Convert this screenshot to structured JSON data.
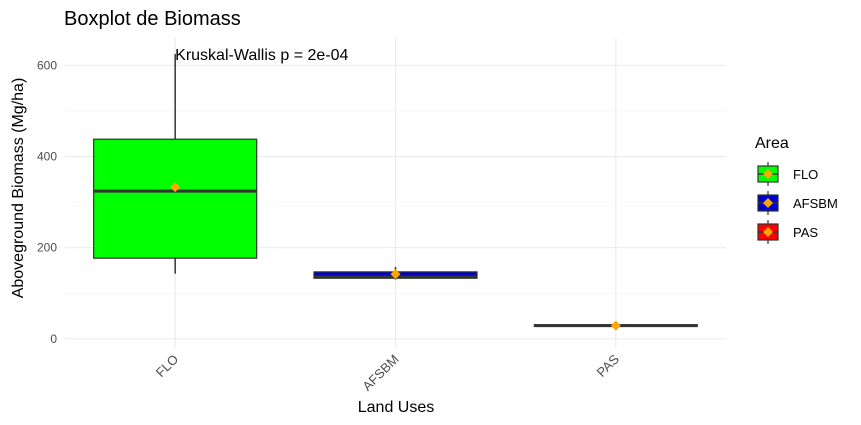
{
  "chart_data": {
    "type": "boxplot",
    "title": "Boxplot de Biomass",
    "xlabel": "Land Uses",
    "ylabel": "Aboveground Biomass (Mg/ha)",
    "annotation": "Kruskal-Wallis p = 2e-04",
    "ylim": [
      -20,
      660
    ],
    "yticks": [
      0,
      200,
      400,
      600
    ],
    "ytick_labels": [
      "0",
      "200",
      "400",
      "600"
    ],
    "categories": [
      "FLO",
      "AFSBM",
      "PAS"
    ],
    "boxes": [
      {
        "category": "FLO",
        "min": 143,
        "q1": 177,
        "median": 324,
        "q3": 438,
        "max": 625,
        "mean": 333,
        "fill": "#00ff00"
      },
      {
        "category": "AFSBM",
        "min": 130,
        "q1": 133,
        "median": 136,
        "q3": 147,
        "max": 158,
        "mean": 142,
        "fill": "#0000cd"
      },
      {
        "category": "PAS",
        "min": 27,
        "q1": 28,
        "median": 29,
        "q3": 31,
        "max": 32,
        "mean": 29,
        "fill": "#ff0000"
      }
    ],
    "mean_marker_color": "#ffa500",
    "box_outline_color": "#333333",
    "grid": true,
    "legend": {
      "title": "Area",
      "placement": "right",
      "entries": [
        "FLO",
        "AFSBM",
        "PAS"
      ]
    }
  }
}
